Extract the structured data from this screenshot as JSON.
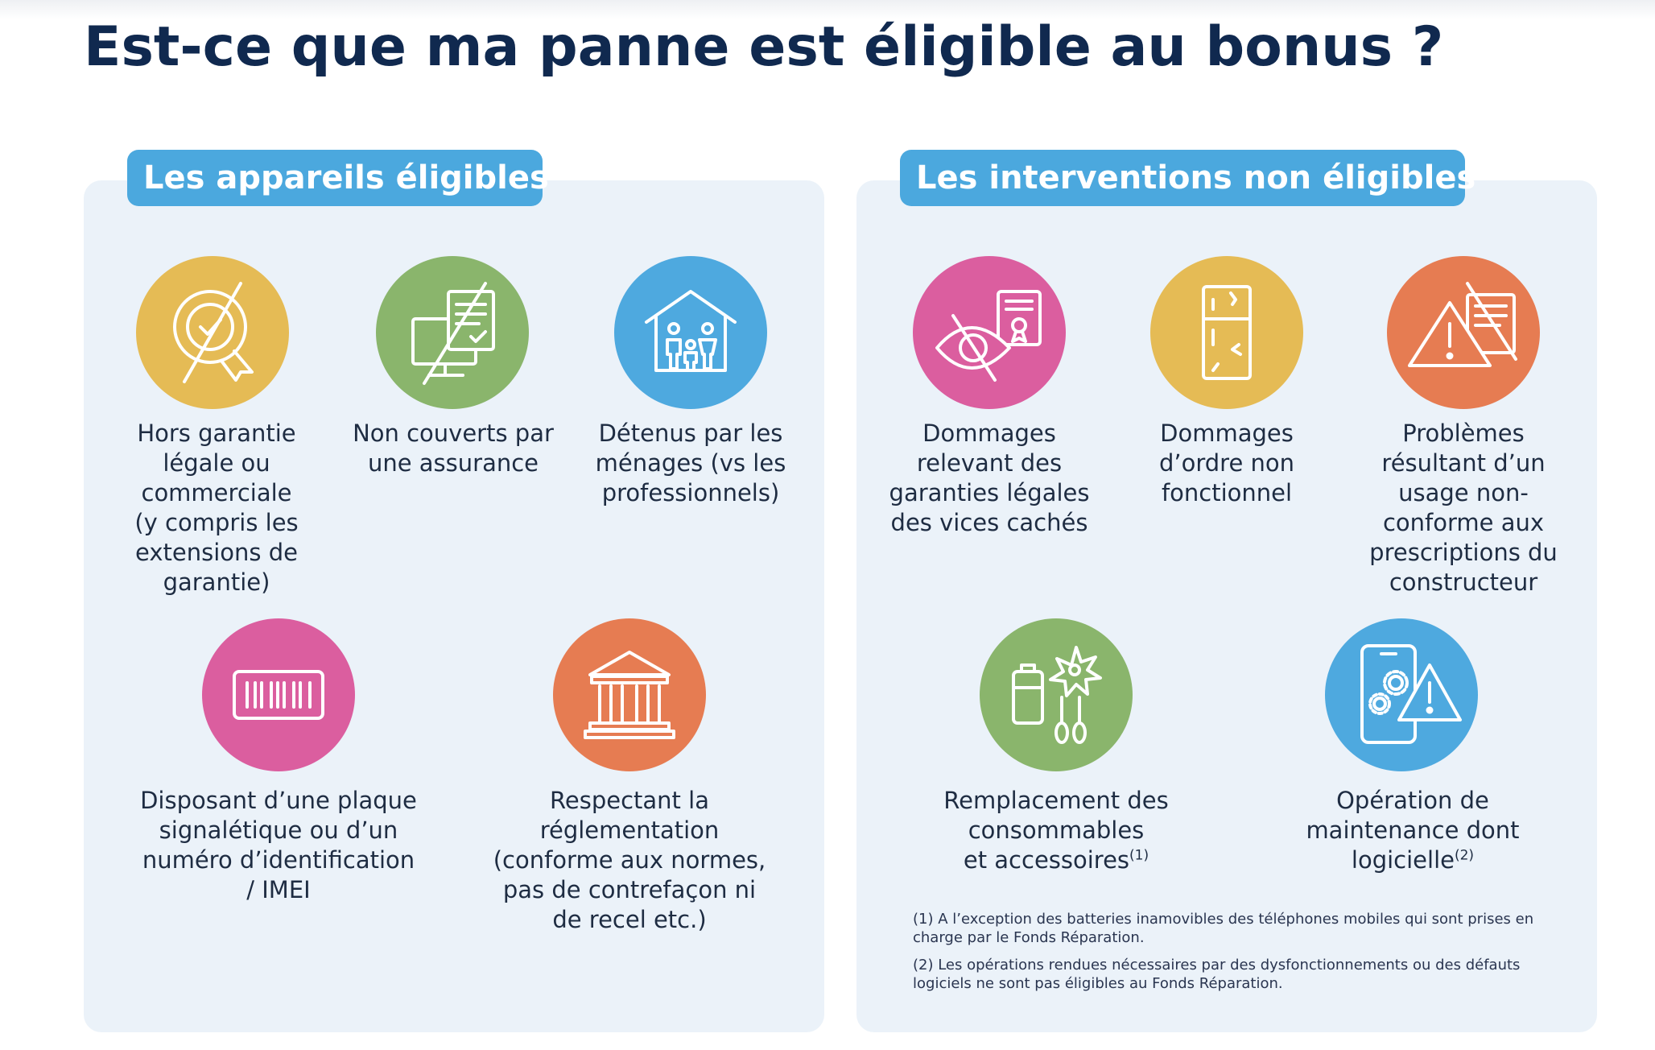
{
  "title": "Est-ce que ma panne est éligible au bonus ?",
  "left_panel": {
    "heading": "Les appareils éligibles",
    "items": [
      {
        "icon": "certificate-crossed-icon",
        "color": "#e5bb55",
        "label": "Hors garantie\nlégale ou\ncommerciale\n(y compris les\nextensions de\ngarantie)"
      },
      {
        "icon": "computer-document-crossed-icon",
        "color": "#8ab56c",
        "label": "Non couverts par\nune assurance"
      },
      {
        "icon": "household-family-icon",
        "color": "#4ea9df",
        "label": "Détenus par les\nménages (vs les\nprofessionnels)"
      },
      {
        "icon": "barcode-plate-icon",
        "color": "#db5e9f",
        "label": "Disposant d’une plaque\nsignalétique ou d’un\nnuméro d’identification\n/ IMEI"
      },
      {
        "icon": "regulation-building-icon",
        "color": "#e67c52",
        "label": "Respectant la\nréglementation\n(conforme aux normes,\npas de contrefaçon ni\nde recel etc.)"
      }
    ]
  },
  "right_panel": {
    "heading": "Les interventions non éligibles",
    "items": [
      {
        "icon": "eye-crossed-certificate-icon",
        "color": "#db5e9f",
        "label": "Dommages\nrelevant des\ngaranties légales\ndes vices cachés"
      },
      {
        "icon": "cracked-fridge-icon",
        "color": "#e5bb55",
        "label": "Dommages\nd’ordre non\nfonctionnel"
      },
      {
        "icon": "warning-document-crossed-icon",
        "color": "#e67c52",
        "label": "Problèmes\nrésultant d’un\nusage non-\nconforme aux\nprescriptions du\nconstructeur"
      },
      {
        "icon": "battery-blade-accessories-icon",
        "color": "#8ab56c",
        "label": "Remplacement des\nconsommables\net accessoires",
        "note": "(1)"
      },
      {
        "icon": "phone-gear-warning-icon",
        "color": "#4ea9df",
        "label": "Opération de\nmaintenance dont\nlogicielle",
        "note": "(2)"
      }
    ],
    "footnotes": [
      "(1) A l’exception des batteries inamovibles des téléphones mobiles qui sont prises en charge par le Fonds Réparation.",
      "(2) Les opérations rendues nécessaires par des dysfonctionnements ou des défauts logiciels ne sont pas éligibles au Fonds Réparation."
    ]
  }
}
